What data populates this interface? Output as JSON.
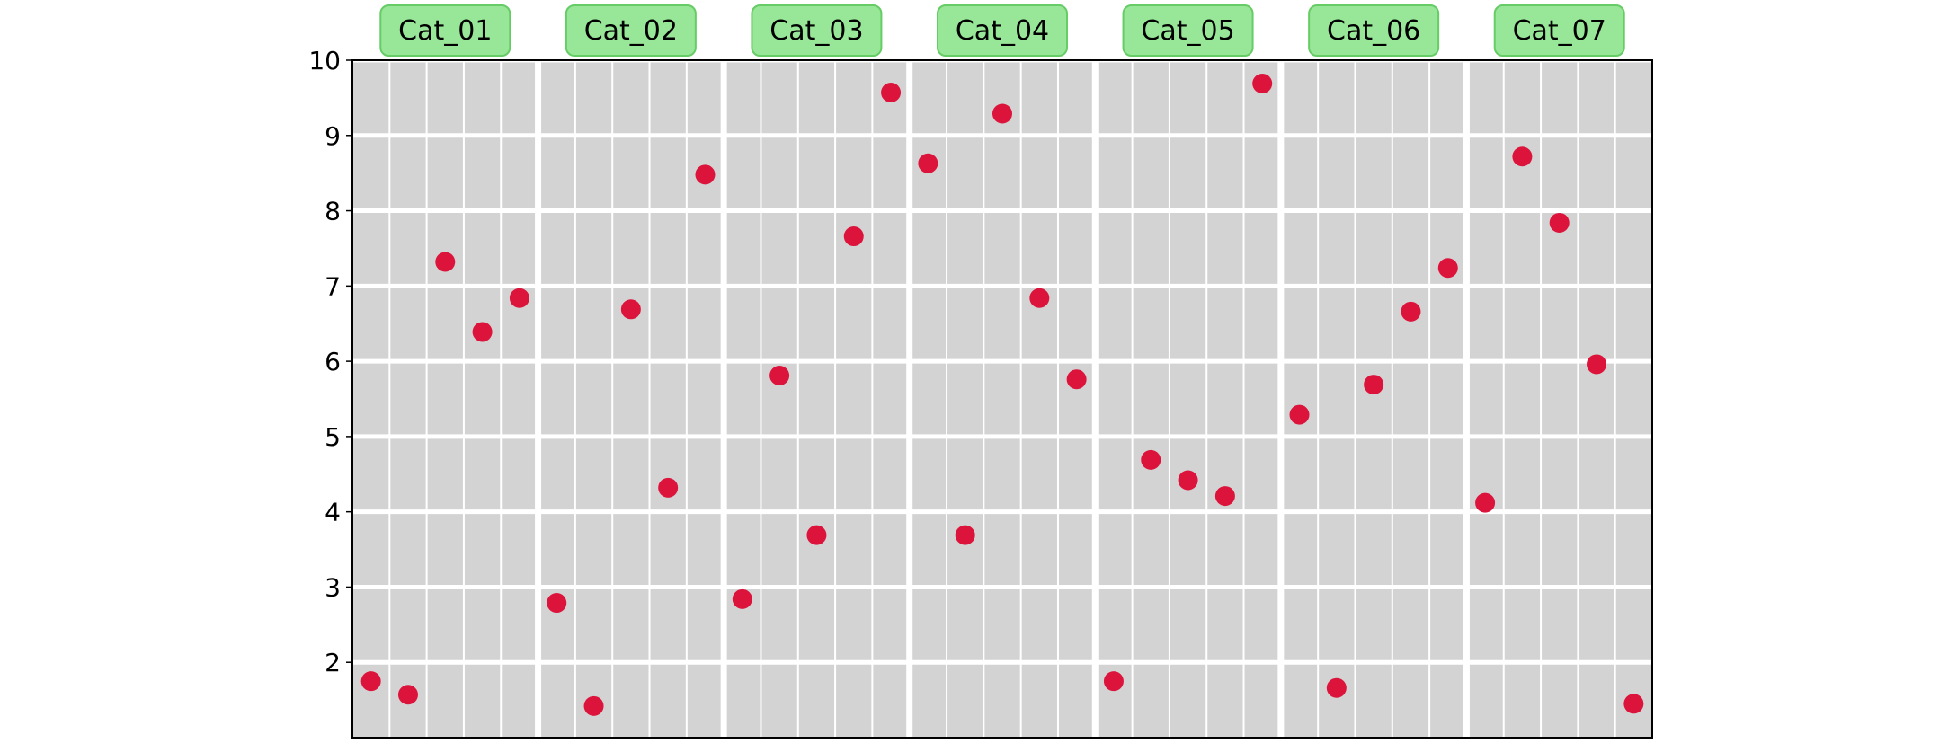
{
  "chart_data": {
    "type": "scatter",
    "title": "",
    "xlabel": "",
    "ylabel": "",
    "ylim": [
      1,
      10
    ],
    "yticks": [
      2,
      3,
      4,
      5,
      6,
      7,
      8,
      9,
      10
    ],
    "grid": true,
    "legend": "none",
    "categories": [
      "Cat_01",
      "Cat_02",
      "Cat_03",
      "Cat_04",
      "Cat_05",
      "Cat_06",
      "Cat_07"
    ],
    "points_per_category": 5,
    "values": [
      [
        1.75,
        1.57,
        7.32,
        6.39,
        6.84
      ],
      [
        2.79,
        1.42,
        6.69,
        4.32,
        8.48
      ],
      [
        2.84,
        5.81,
        3.69,
        7.66,
        9.57
      ],
      [
        8.63,
        3.69,
        9.29,
        6.84,
        5.76
      ],
      [
        1.75,
        4.69,
        4.42,
        4.21,
        9.69
      ],
      [
        5.29,
        1.66,
        5.69,
        6.66,
        7.24
      ],
      [
        4.12,
        8.72,
        7.84,
        5.96,
        1.45
      ]
    ],
    "colors": {
      "marker": "#DC143C",
      "panel_background": "#D3D3D3",
      "grid": "#FFFFFF",
      "label_box_fill": "#98E698",
      "label_box_edge": "#66CC66"
    }
  }
}
